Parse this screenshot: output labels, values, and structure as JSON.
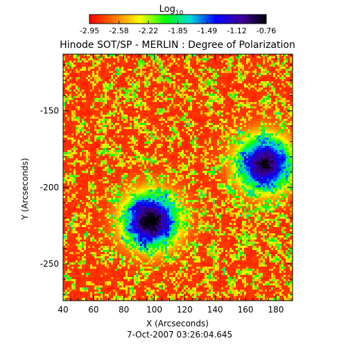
{
  "chart_data": {
    "type": "heatmap",
    "title": "Hinode SOT/SP - MERLIN : Degree of Polarization",
    "subtitle": "7-Oct-2007 03:26:04.645",
    "xlabel": "X (Arcseconds)",
    "ylabel": "Y (Arcseconds)",
    "xlim": [
      40,
      191
    ],
    "ylim": [
      -274,
      -113
    ],
    "xticks": [
      40,
      60,
      80,
      100,
      120,
      140,
      160,
      180
    ],
    "yticks": [
      -150,
      -200,
      -250
    ],
    "colorbar": {
      "label": "Log",
      "label_subscript": "10",
      "range": [
        -2.95,
        -0.76
      ],
      "ticks": [
        "-2.95",
        "-2.58",
        "-2.22",
        "-1.85",
        "-1.49",
        "-1.12",
        "-0.76"
      ]
    },
    "features": [
      {
        "name": "dark-core-left",
        "x": 97,
        "y": -221,
        "level": -0.85
      },
      {
        "name": "dark-core-right",
        "x": 172,
        "y": -184,
        "level": -0.95
      }
    ]
  },
  "colors": {
    "colormap": [
      "#ff0000",
      "#ff7800",
      "#ffff00",
      "#00ff00",
      "#00d8d8",
      "#0000ff",
      "#4000a0",
      "#000000"
    ],
    "background": "#ffffff",
    "axis": "#000000"
  }
}
